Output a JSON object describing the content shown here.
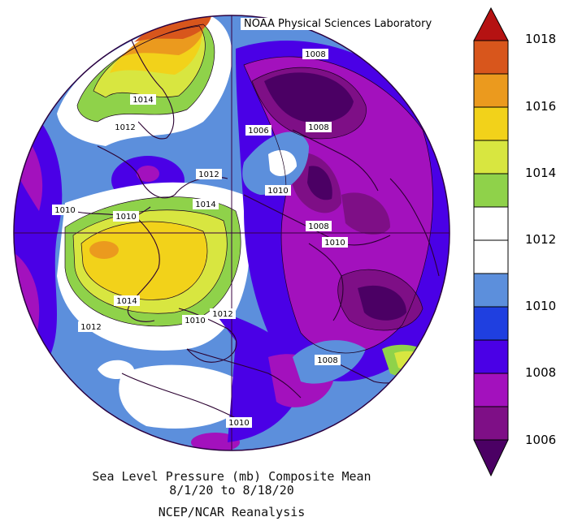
{
  "credit": "NOAA Physical Sciences Laboratory",
  "caption": {
    "line1": "Sea Level Pressure (mb) Composite Mean",
    "line2": "8/1/20  to 8/18/20",
    "line3": "NCEP/NCAR Reanalysis"
  },
  "colorbar": {
    "labels": [
      "1018",
      "1016",
      "1014",
      "1012",
      "1010",
      "1008",
      "1006"
    ],
    "colors": {
      "1006": "#4b0064",
      "1007": "#7e0f86",
      "1008": "#a311bd",
      "1009": "#4a00e6",
      "1010": "#1f3fe0",
      "1011": "#5c8fdc",
      "1012": "#ffffff",
      "1013": "#ffffff",
      "1014": "#8fd24a",
      "1015": "#d8e640",
      "1016": "#f2d21a",
      "1017": "#eb9a1e",
      "1018": "#d8561c",
      "1019": "#b51212"
    }
  },
  "contour_labels": [
    "1008",
    "1014",
    "1012",
    "1006",
    "1008",
    "1012",
    "1010",
    "1010",
    "1014",
    "1010",
    "1008",
    "1010",
    "1014",
    "1012",
    "1012",
    "1010",
    "1008",
    "1010"
  ]
}
